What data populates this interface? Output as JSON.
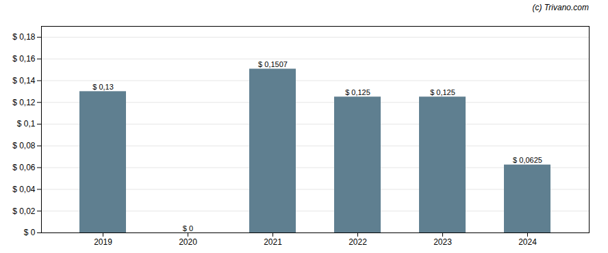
{
  "chart_data": {
    "type": "bar",
    "categories": [
      "2019",
      "2020",
      "2021",
      "2022",
      "2023",
      "2024"
    ],
    "values": [
      0.13,
      0.0,
      0.1507,
      0.125,
      0.125,
      0.0625
    ],
    "value_labels": [
      "$ 0,13",
      "$ 0",
      "$ 0,1507",
      "$ 0,125",
      "$ 0,125",
      "$ 0,0625"
    ],
    "data_labels": true,
    "color": "#5f7f90",
    "ylim": [
      0,
      0.19
    ],
    "yticks": [
      {
        "value": 0,
        "label": "$ 0"
      },
      {
        "value": 0.02,
        "label": "$ 0,02"
      },
      {
        "value": 0.04,
        "label": "$ 0,04"
      },
      {
        "value": 0.06,
        "label": "$ 0,06"
      },
      {
        "value": 0.08,
        "label": "$ 0,08"
      },
      {
        "value": 0.1,
        "label": "$ 0,1"
      },
      {
        "value": 0.12,
        "label": "$ 0,12"
      },
      {
        "value": 0.14,
        "label": "$ 0,14"
      },
      {
        "value": 0.16,
        "label": "$ 0,16"
      },
      {
        "value": 0.18,
        "label": "$ 0,18"
      }
    ],
    "grid": true,
    "annotations": [
      "(c) Trivano.com"
    ]
  }
}
